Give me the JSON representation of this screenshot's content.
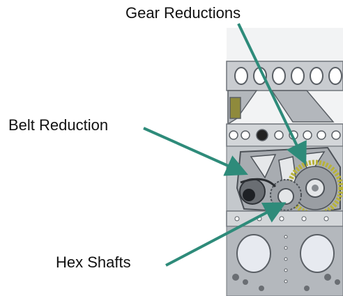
{
  "labels": {
    "gear_reductions": "Gear Reductions",
    "belt_reduction": "Belt Reduction",
    "hex_shafts": "Hex Shafts"
  },
  "colors": {
    "arrow": "#2e8b7a",
    "frame": "#cfd2d6",
    "frame_dark": "#7d8288",
    "gear_yellow": "#b8b23a",
    "plate": "#9da1a6"
  }
}
